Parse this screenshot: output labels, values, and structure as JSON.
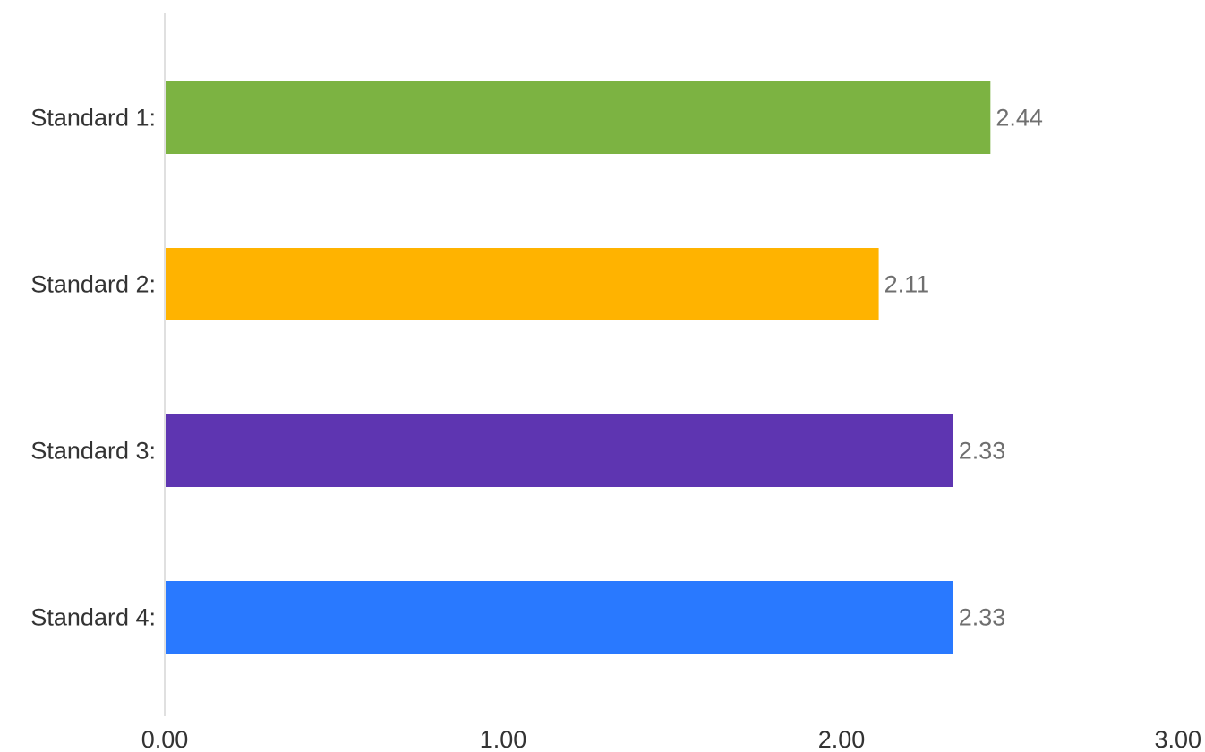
{
  "chart_data": {
    "type": "bar",
    "orientation": "horizontal",
    "categories": [
      "Standard 1:",
      "Standard 2:",
      "Standard 3:",
      "Standard 4:"
    ],
    "values": [
      2.44,
      2.11,
      2.33,
      2.33
    ],
    "value_labels": [
      "2.44",
      "2.11",
      "2.33",
      "2.33"
    ],
    "colors": [
      "#7cb342",
      "#ffb300",
      "#5e35b1",
      "#2979ff"
    ],
    "xlim": [
      0,
      3
    ],
    "x_ticks": [
      0,
      1,
      2,
      3
    ],
    "x_tick_labels": [
      "0.00",
      "1.00",
      "2.00",
      "3.00"
    ],
    "title": "",
    "xlabel": "",
    "ylabel": "",
    "grid": false,
    "legend": "none",
    "axis_line_color": "#e0e0e0"
  }
}
